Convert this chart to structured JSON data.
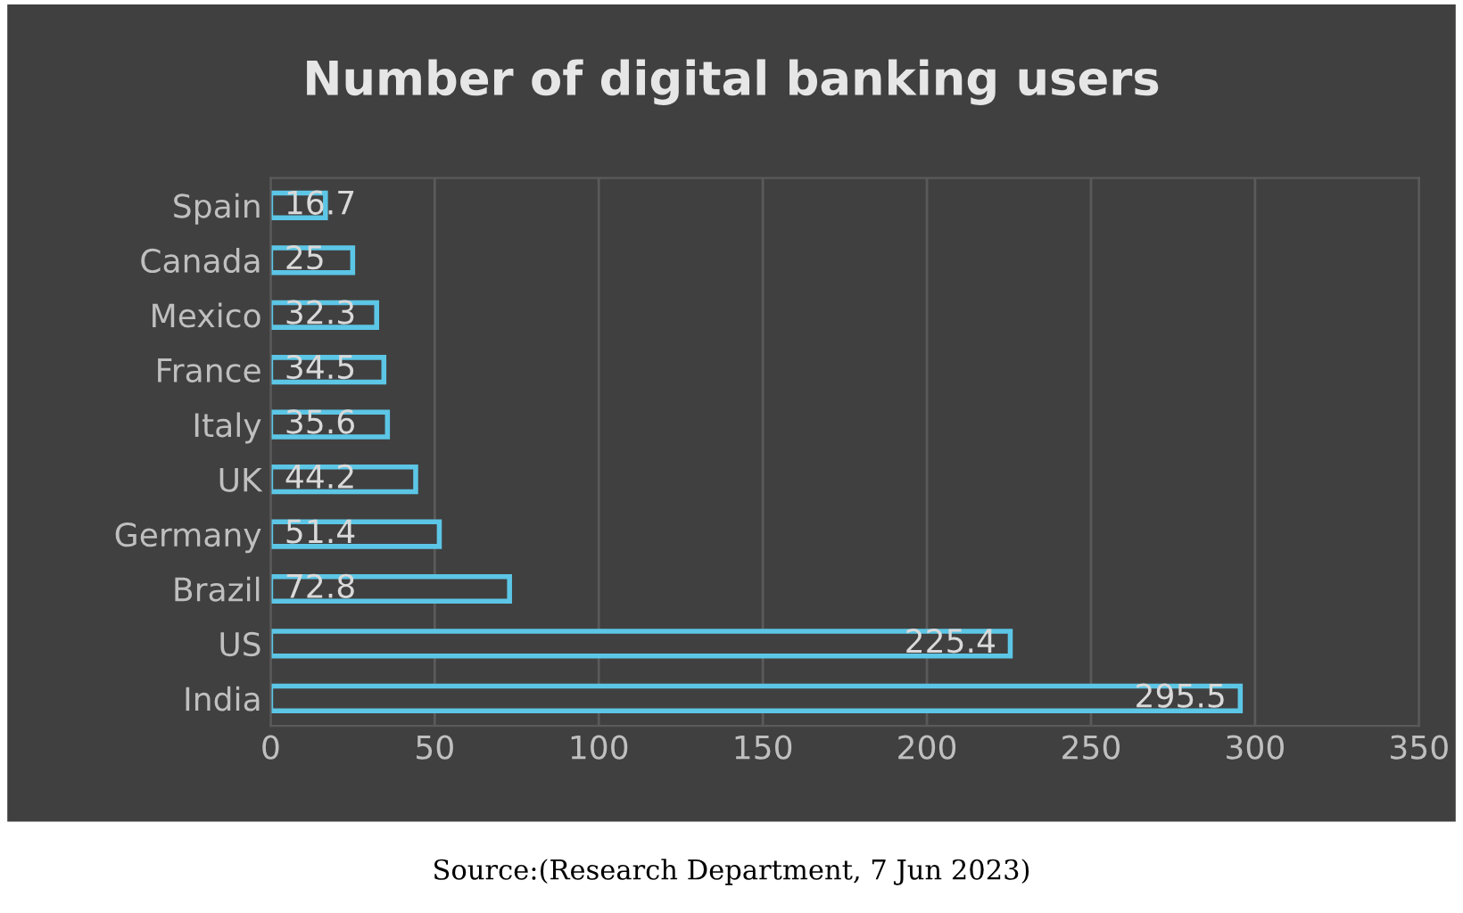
{
  "chart_data": {
    "type": "bar",
    "orientation": "horizontal",
    "title": "Number of digital banking users",
    "categories": [
      "Spain",
      "Canada",
      "Mexico",
      "France",
      "Italy",
      "UK",
      "Germany",
      "Brazil",
      "US",
      "India"
    ],
    "values": [
      16.7,
      25,
      32.3,
      34.5,
      35.6,
      44.2,
      51.4,
      72.8,
      225.4,
      295.5
    ],
    "color": "#5cc6e6",
    "data_labels": true,
    "xlim": [
      0,
      350
    ],
    "xticks": [
      0,
      50,
      100,
      150,
      200,
      250,
      300,
      350
    ],
    "grid": "x",
    "annotations": [
      "Source:(Research Department, 7 Jun 2023)"
    ]
  }
}
